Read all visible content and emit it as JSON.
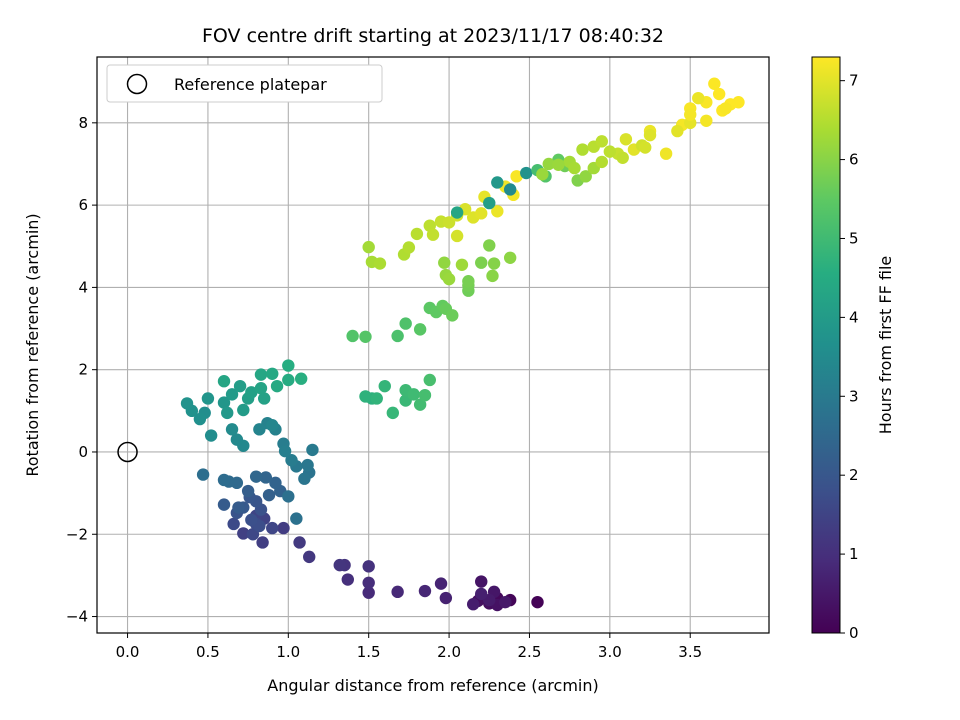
{
  "chart_data": {
    "type": "scatter",
    "title": "FOV centre drift starting at 2023/11/17 08:40:32",
    "xlabel": "Angular distance from reference (arcmin)",
    "ylabel": "Rotation from reference (arcmin)",
    "colorbar_label": "Hours from first FF file",
    "xlim": [
      -0.19,
      3.99
    ],
    "ylim": [
      -4.4,
      9.6
    ],
    "xticks": [
      0.0,
      0.5,
      1.0,
      1.5,
      2.0,
      2.5,
      3.0,
      3.5
    ],
    "xtick_labels": [
      "0.0",
      "0.5",
      "1.0",
      "1.5",
      "2.0",
      "2.5",
      "3.0",
      "3.5"
    ],
    "yticks": [
      -4,
      -2,
      0,
      2,
      4,
      6,
      8
    ],
    "ytick_labels": [
      "−4",
      "−2",
      "0",
      "2",
      "4",
      "6",
      "8"
    ],
    "colorbar_range": [
      0,
      7.3
    ],
    "colorbar_ticks": [
      0,
      1,
      2,
      3,
      4,
      5,
      6,
      7
    ],
    "colorbar_tick_labels": [
      "0",
      "1",
      "2",
      "3",
      "4",
      "5",
      "6",
      "7"
    ],
    "colormap": "viridis",
    "grid": true,
    "legend_position": "top-left",
    "reference": {
      "label": "Reference platepar",
      "x": 0.0,
      "y": 0.0
    },
    "points": [
      [
        2.55,
        -3.65,
        0.05
      ],
      [
        2.38,
        -3.6,
        0.1
      ],
      [
        2.3,
        -3.55,
        0.15
      ],
      [
        2.2,
        -3.5,
        0.2
      ],
      [
        2.25,
        -3.68,
        0.25
      ],
      [
        2.18,
        -3.62,
        0.3
      ],
      [
        2.3,
        -3.72,
        0.35
      ],
      [
        2.2,
        -3.15,
        0.4
      ],
      [
        2.28,
        -3.4,
        0.45
      ],
      [
        2.35,
        -3.65,
        0.5
      ],
      [
        2.25,
        -3.6,
        0.55
      ],
      [
        2.15,
        -3.7,
        0.6
      ],
      [
        2.2,
        -3.45,
        0.65
      ],
      [
        1.98,
        -3.55,
        0.7
      ],
      [
        1.95,
        -3.2,
        0.75
      ],
      [
        1.85,
        -3.38,
        0.8
      ],
      [
        1.68,
        -3.4,
        0.85
      ],
      [
        1.5,
        -3.42,
        0.9
      ],
      [
        1.5,
        -3.18,
        0.95
      ],
      [
        1.37,
        -3.1,
        1.0
      ],
      [
        1.5,
        -2.78,
        1.05
      ],
      [
        1.35,
        -2.75,
        1.1
      ],
      [
        1.32,
        -2.75,
        1.15
      ],
      [
        1.13,
        -2.55,
        1.2
      ],
      [
        1.07,
        -2.2,
        1.25
      ],
      [
        0.97,
        -1.85,
        1.3
      ],
      [
        0.84,
        -2.2,
        1.35
      ],
      [
        0.72,
        -1.98,
        1.4
      ],
      [
        0.85,
        -1.62,
        1.45
      ],
      [
        0.8,
        -1.55,
        1.5
      ],
      [
        0.9,
        -1.85,
        1.55
      ],
      [
        0.78,
        -2.0,
        1.6
      ],
      [
        0.66,
        -1.75,
        1.65
      ],
      [
        0.8,
        -1.75,
        1.7
      ],
      [
        0.82,
        -1.8,
        1.75
      ],
      [
        0.77,
        -1.65,
        1.8
      ],
      [
        0.83,
        -1.4,
        1.85
      ],
      [
        0.68,
        -1.48,
        1.9
      ],
      [
        0.8,
        -1.2,
        1.95
      ],
      [
        0.76,
        -1.1,
        2.0
      ],
      [
        0.72,
        -1.35,
        2.05
      ],
      [
        0.6,
        -1.28,
        2.1
      ],
      [
        0.69,
        -1.35,
        2.15
      ],
      [
        0.75,
        -0.95,
        2.2
      ],
      [
        0.88,
        -1.05,
        2.25
      ],
      [
        0.95,
        -0.95,
        2.3
      ],
      [
        0.92,
        -0.75,
        2.35
      ],
      [
        0.86,
        -0.62,
        2.4
      ],
      [
        0.8,
        -0.6,
        2.45
      ],
      [
        0.68,
        -0.75,
        2.5
      ],
      [
        0.63,
        -0.72,
        2.55
      ],
      [
        0.6,
        -0.68,
        2.6
      ],
      [
        0.47,
        -0.55,
        2.65
      ],
      [
        1.0,
        -1.08,
        2.7
      ],
      [
        1.05,
        -1.62,
        2.75
      ],
      [
        1.13,
        -0.5,
        2.8
      ],
      [
        1.1,
        -0.65,
        2.85
      ],
      [
        1.12,
        -0.32,
        2.9
      ],
      [
        1.05,
        -0.35,
        2.95
      ],
      [
        1.15,
        0.05,
        3.0
      ],
      [
        1.02,
        -0.2,
        3.05
      ],
      [
        0.97,
        0.2,
        3.1
      ],
      [
        0.98,
        0.02,
        3.15
      ],
      [
        0.92,
        0.55,
        3.2
      ],
      [
        0.87,
        0.7,
        3.25
      ],
      [
        0.82,
        0.55,
        3.3
      ],
      [
        0.9,
        0.65,
        3.35
      ],
      [
        0.72,
        0.15,
        3.4
      ],
      [
        0.68,
        0.3,
        3.45
      ],
      [
        0.65,
        0.55,
        3.5
      ],
      [
        0.52,
        0.4,
        3.55
      ],
      [
        0.48,
        0.95,
        3.6
      ],
      [
        0.45,
        0.8,
        3.65
      ],
      [
        0.4,
        1.0,
        3.7
      ],
      [
        0.37,
        1.18,
        3.75
      ],
      [
        0.5,
        1.3,
        3.8
      ],
      [
        0.6,
        1.2,
        3.85
      ],
      [
        0.62,
        0.95,
        3.9
      ],
      [
        0.65,
        1.4,
        3.95
      ],
      [
        0.72,
        1.02,
        4.0
      ],
      [
        0.7,
        1.6,
        4.05
      ],
      [
        0.75,
        1.3,
        4.1
      ],
      [
        0.77,
        1.45,
        4.15
      ],
      [
        0.85,
        1.3,
        4.2
      ],
      [
        0.83,
        1.55,
        4.25
      ],
      [
        0.6,
        1.72,
        4.3
      ],
      [
        0.83,
        1.88,
        4.35
      ],
      [
        0.9,
        1.9,
        4.4
      ],
      [
        0.93,
        1.6,
        4.45
      ],
      [
        1.0,
        1.75,
        4.5
      ],
      [
        1.0,
        2.1,
        4.55
      ],
      [
        1.08,
        1.78,
        4.6
      ],
      [
        1.52,
        1.3,
        4.65
      ],
      [
        1.48,
        1.35,
        4.7
      ],
      [
        1.55,
        1.3,
        4.75
      ],
      [
        1.6,
        1.6,
        4.8
      ],
      [
        1.65,
        0.95,
        4.85
      ],
      [
        1.73,
        1.25,
        4.9
      ],
      [
        1.73,
        1.5,
        4.95
      ],
      [
        1.78,
        1.4,
        5.0
      ],
      [
        1.82,
        1.15,
        5.05
      ],
      [
        1.85,
        1.38,
        5.1
      ],
      [
        1.88,
        1.75,
        5.15
      ],
      [
        1.68,
        2.82,
        5.2
      ],
      [
        1.73,
        3.12,
        5.25
      ],
      [
        1.4,
        2.82,
        5.3
      ],
      [
        1.48,
        2.8,
        5.35
      ],
      [
        1.82,
        2.98,
        5.4
      ],
      [
        1.88,
        3.5,
        5.45
      ],
      [
        1.92,
        3.4,
        5.5
      ],
      [
        1.96,
        3.55,
        5.55
      ],
      [
        1.98,
        3.48,
        5.6
      ],
      [
        2.02,
        3.32,
        5.65
      ],
      [
        2.12,
        3.92,
        5.7
      ],
      [
        2.12,
        4.05,
        5.75
      ],
      [
        2.12,
        4.15,
        5.8
      ],
      [
        2.2,
        4.6,
        5.85
      ],
      [
        2.25,
        5.02,
        5.9
      ],
      [
        2.28,
        4.58,
        5.95
      ],
      [
        2.27,
        4.28,
        6.0
      ],
      [
        2.38,
        4.72,
        6.05
      ],
      [
        1.97,
        4.6,
        6.1
      ],
      [
        1.98,
        4.3,
        6.15
      ],
      [
        2.0,
        4.2,
        6.2
      ],
      [
        2.08,
        4.55,
        6.25
      ],
      [
        1.5,
        4.98,
        6.3
      ],
      [
        1.52,
        4.62,
        6.35
      ],
      [
        1.57,
        4.58,
        6.4
      ],
      [
        1.72,
        4.8,
        6.45
      ],
      [
        1.75,
        4.97,
        6.5
      ],
      [
        1.8,
        5.3,
        6.55
      ],
      [
        1.88,
        5.5,
        6.6
      ],
      [
        1.9,
        5.28,
        6.65
      ],
      [
        1.95,
        5.6,
        6.7
      ],
      [
        2.0,
        5.58,
        6.75
      ],
      [
        2.05,
        5.75,
        6.8
      ],
      [
        2.05,
        5.25,
        6.85
      ],
      [
        2.1,
        5.9,
        6.9
      ],
      [
        2.15,
        5.7,
        6.95
      ],
      [
        2.2,
        5.8,
        7.0
      ],
      [
        2.22,
        6.2,
        7.05
      ],
      [
        2.3,
        5.85,
        7.1
      ],
      [
        2.35,
        6.45,
        7.15
      ],
      [
        2.4,
        6.25,
        7.2
      ],
      [
        2.42,
        6.7,
        7.25
      ],
      [
        2.38,
        6.38,
        3.5
      ],
      [
        2.48,
        6.78,
        3.7
      ],
      [
        2.3,
        6.55,
        3.9
      ],
      [
        2.25,
        6.05,
        4.1
      ],
      [
        2.05,
        5.82,
        4.3
      ],
      [
        2.55,
        6.85,
        5.1
      ],
      [
        2.6,
        6.7,
        5.3
      ],
      [
        2.68,
        7.1,
        5.5
      ],
      [
        2.72,
        6.95,
        5.7
      ],
      [
        2.8,
        6.6,
        5.9
      ],
      [
        2.85,
        6.7,
        6.1
      ],
      [
        2.9,
        6.9,
        6.3
      ],
      [
        2.95,
        7.05,
        6.5
      ],
      [
        3.05,
        7.25,
        6.7
      ],
      [
        3.1,
        7.6,
        6.9
      ],
      [
        3.15,
        7.35,
        7.0
      ],
      [
        3.25,
        7.8,
        7.1
      ],
      [
        3.35,
        7.25,
        7.15
      ],
      [
        3.45,
        7.95,
        7.2
      ],
      [
        3.5,
        8.35,
        7.25
      ],
      [
        3.6,
        8.5,
        7.25
      ],
      [
        3.65,
        8.95,
        7.28
      ],
      [
        3.7,
        8.3,
        7.29
      ],
      [
        3.75,
        8.45,
        7.3
      ],
      [
        3.8,
        8.5,
        7.3
      ],
      [
        3.6,
        8.05,
        7.2
      ],
      [
        3.55,
        8.6,
        7.1
      ],
      [
        3.5,
        8.0,
        7.05
      ],
      [
        3.42,
        7.8,
        7.0
      ],
      [
        3.25,
        7.7,
        6.95
      ],
      [
        2.58,
        6.75,
        6.2
      ],
      [
        2.75,
        7.05,
        6.3
      ],
      [
        2.78,
        6.9,
        6.35
      ],
      [
        2.83,
        7.35,
        6.45
      ],
      [
        2.9,
        7.42,
        6.55
      ],
      [
        3.0,
        7.3,
        6.6
      ],
      [
        3.08,
        7.15,
        6.65
      ],
      [
        3.2,
        7.45,
        6.8
      ],
      [
        3.22,
        7.4,
        6.85
      ],
      [
        2.62,
        7.0,
        6.15
      ],
      [
        2.68,
        6.98,
        6.2
      ],
      [
        3.68,
        8.7,
        7.3
      ],
      [
        3.72,
        8.35,
        7.25
      ],
      [
        3.5,
        8.2,
        7.2
      ],
      [
        2.95,
        7.55,
        6.6
      ]
    ]
  }
}
